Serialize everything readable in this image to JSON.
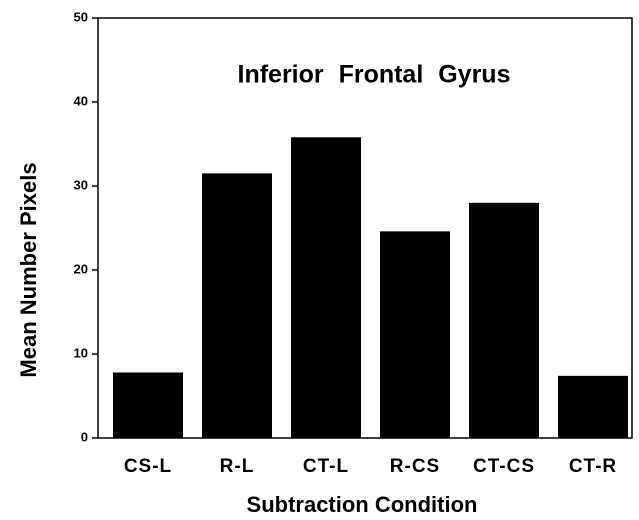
{
  "chart_data": {
    "type": "bar",
    "title": "Inferior Frontal Gyrus",
    "xlabel": "Subtraction Condition",
    "ylabel": "Mean Number Pixels",
    "categories": [
      "CS-L",
      "R-L",
      "CT-L",
      "R-CS",
      "CT-CS",
      "CT-R"
    ],
    "values": [
      7.8,
      31.5,
      35.8,
      24.6,
      28,
      7.4
    ],
    "color": "#000000",
    "ylim": [
      0,
      50
    ],
    "yticks": [
      0,
      10,
      20,
      30,
      40,
      50
    ],
    "grid": false
  }
}
